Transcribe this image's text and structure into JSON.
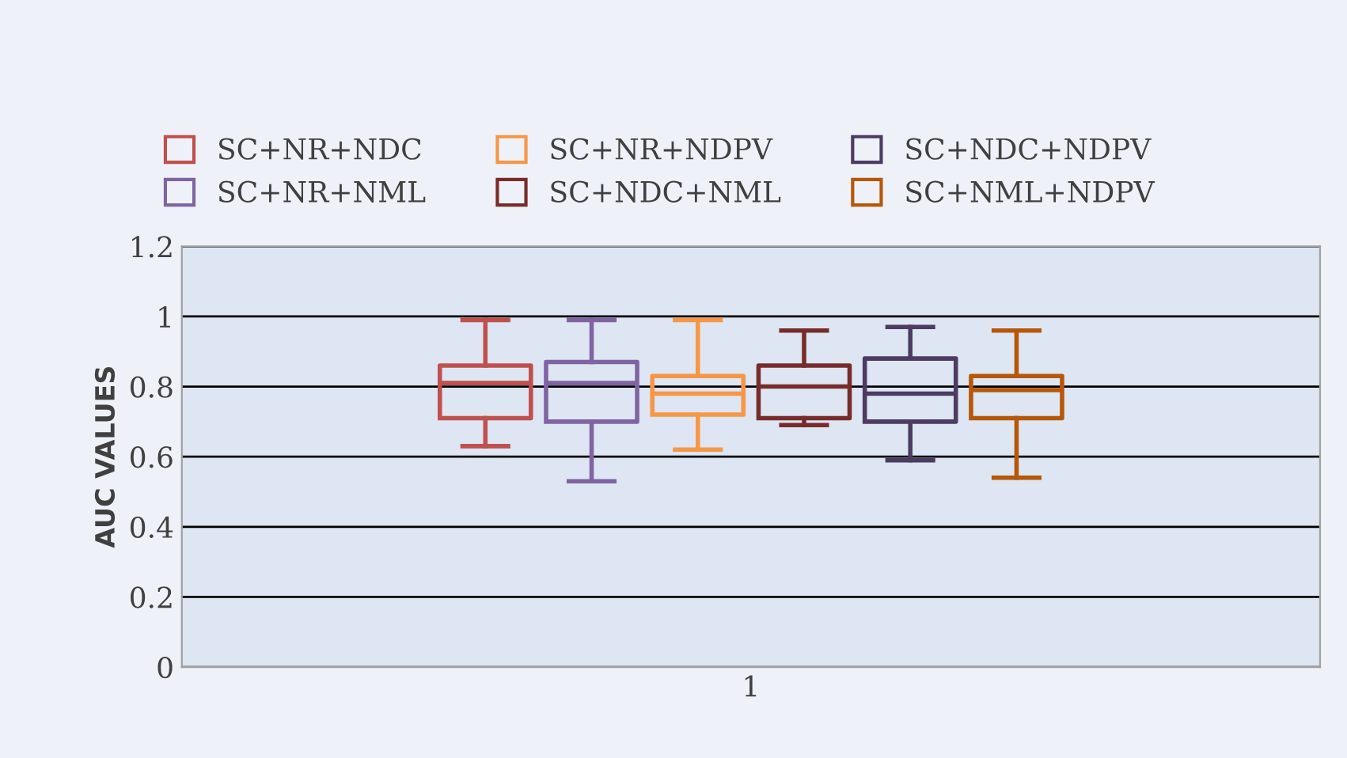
{
  "chart_data": {
    "type": "box",
    "ylabel": "AUC VALUES",
    "categories": [
      "1"
    ],
    "ylim": [
      0,
      1.2
    ],
    "yticks": [
      0,
      0.2,
      0.4,
      0.6,
      0.8,
      1,
      1.2
    ],
    "grid": "y",
    "legend": "top",
    "series": [
      {
        "name": "SC+NR+NDC",
        "color": "#c0504d",
        "boxes": [
          {
            "low": 0.63,
            "q1": 0.71,
            "median": 0.81,
            "q3": 0.86,
            "high": 0.99
          }
        ]
      },
      {
        "name": "SC+NR+NML",
        "color": "#8064a2",
        "boxes": [
          {
            "low": 0.53,
            "q1": 0.7,
            "median": 0.81,
            "q3": 0.87,
            "high": 0.99
          }
        ]
      },
      {
        "name": "SC+NR+NDPV",
        "color": "#f79646",
        "boxes": [
          {
            "low": 0.62,
            "q1": 0.72,
            "median": 0.78,
            "q3": 0.83,
            "high": 0.99
          }
        ]
      },
      {
        "name": "SC+NDC+NML",
        "color": "#772c2a",
        "boxes": [
          {
            "low": 0.69,
            "q1": 0.71,
            "median": 0.8,
            "q3": 0.86,
            "high": 0.96
          }
        ]
      },
      {
        "name": "SC+NDC+NDPV",
        "color": "#4d3b62",
        "boxes": [
          {
            "low": 0.59,
            "q1": 0.7,
            "median": 0.78,
            "q3": 0.88,
            "high": 0.97
          }
        ]
      },
      {
        "name": "SC+NML+NDPV",
        "color": "#b65708",
        "boxes": [
          {
            "low": 0.54,
            "q1": 0.71,
            "median": 0.79,
            "q3": 0.83,
            "high": 0.96
          }
        ]
      }
    ]
  }
}
